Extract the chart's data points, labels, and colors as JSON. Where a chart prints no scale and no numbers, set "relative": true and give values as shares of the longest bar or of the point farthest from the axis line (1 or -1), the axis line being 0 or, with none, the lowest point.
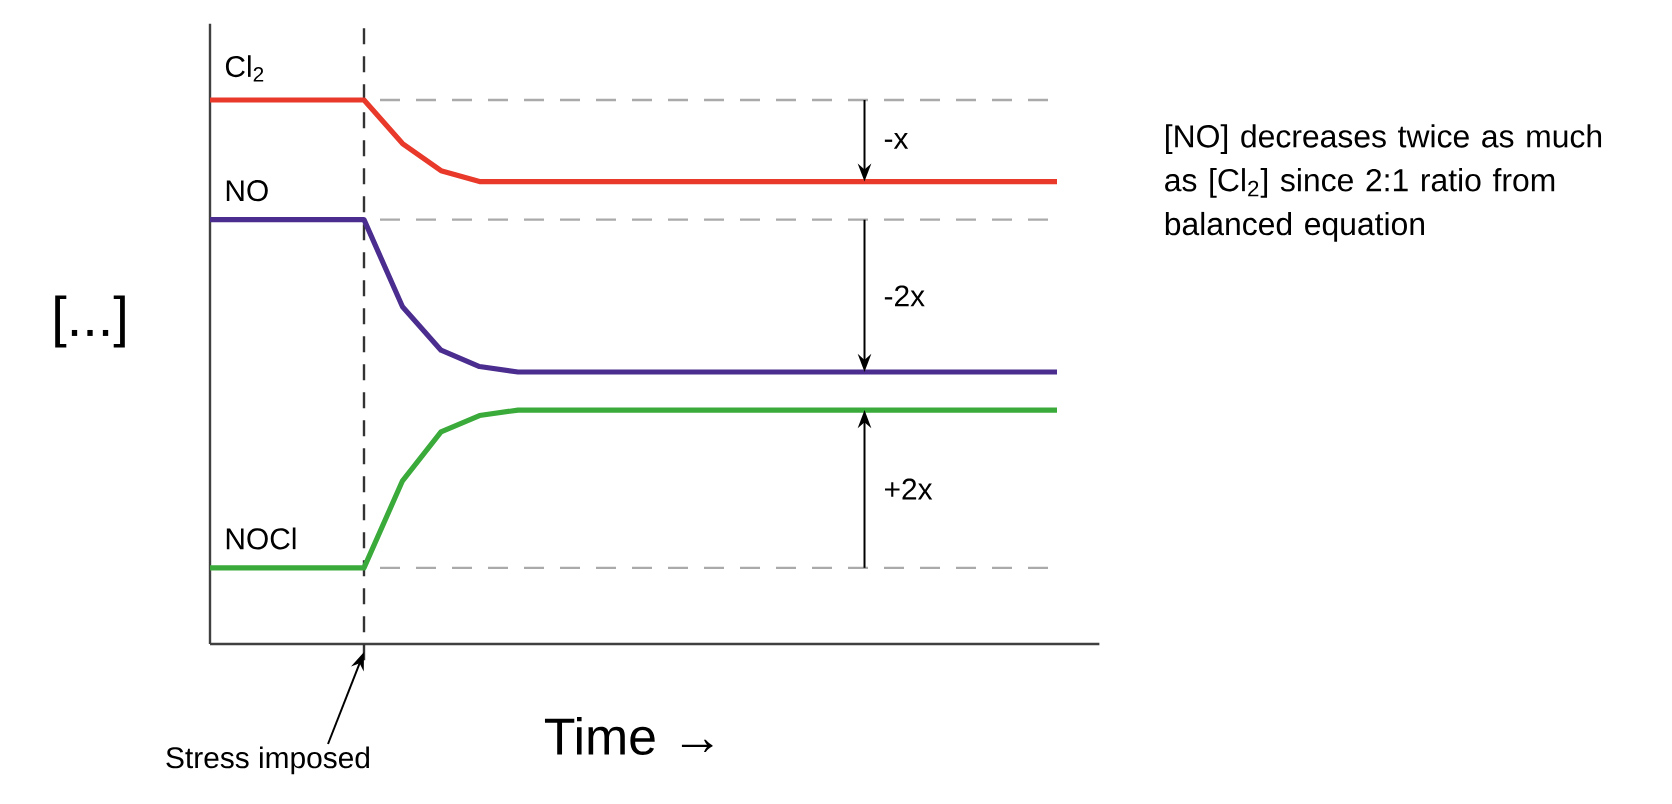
{
  "chart_data": {
    "type": "line",
    "relative": true,
    "xlabel": "Time →",
    "ylabel": "[...]",
    "categories": [
      null,
      null,
      null,
      null,
      null,
      null,
      null,
      null,
      null,
      null,
      null,
      null,
      null,
      null,
      null,
      null,
      null,
      null,
      null,
      null,
      null,
      null,
      null
    ],
    "series": [
      {
        "name": "Cl$_{2}$",
        "color": "#e8392b",
        "values": [
          1.0,
          1.0,
          1.0,
          1.0,
          1.0,
          0.92,
          0.87,
          0.85,
          0.85,
          0.85,
          0.85,
          0.85,
          0.85,
          0.85,
          0.85,
          0.85,
          0.85,
          0.85,
          0.85,
          0.85,
          0.85,
          0.85,
          0.85
        ]
      },
      {
        "name": "NO",
        "color": "#4b2d8f",
        "values": [
          0.78,
          0.78,
          0.78,
          0.78,
          0.78,
          0.62,
          0.54,
          0.51,
          0.5,
          0.5,
          0.5,
          0.5,
          0.5,
          0.5,
          0.5,
          0.5,
          0.5,
          0.5,
          0.5,
          0.5,
          0.5,
          0.5,
          0.5
        ]
      },
      {
        "name": "NOCl",
        "color": "#3aaa3a",
        "values": [
          0.14,
          0.14,
          0.14,
          0.14,
          0.14,
          0.3,
          0.39,
          0.42,
          0.43,
          0.43,
          0.43,
          0.43,
          0.43,
          0.43,
          0.43,
          0.43,
          0.43,
          0.43,
          0.43,
          0.43,
          0.43,
          0.43,
          0.43
        ]
      }
    ],
    "ref_lines": [
      {
        "axis": "y",
        "value": 1.0,
        "color": "#aaaaaa",
        "line_style": "dashed"
      },
      {
        "axis": "y",
        "value": 0.78,
        "color": "#aaaaaa",
        "line_style": "dashed"
      },
      {
        "axis": "y",
        "value": 0.14,
        "color": "#aaaaaa",
        "line_style": "dashed"
      }
    ],
    "annotations": [
      "-x",
      "-2x",
      "+2x",
      "[NO] decreases twice as much as [Cl$_{2}$] since 2:1 ratio from balanced equation",
      "Stress imposed"
    ],
    "line_style": "solid",
    "marker": "none",
    "legend": false
  }
}
